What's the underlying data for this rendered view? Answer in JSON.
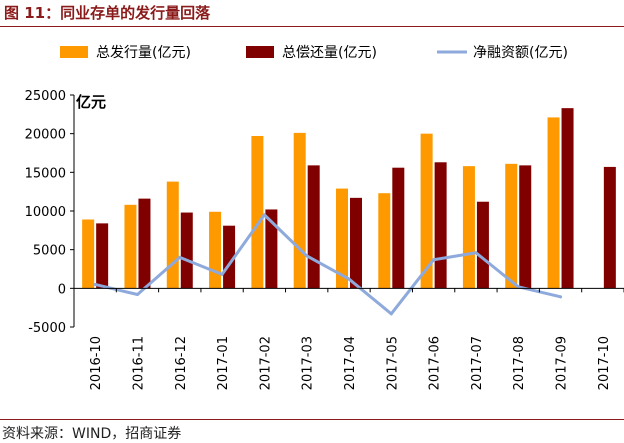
{
  "header": {
    "title": "图 11：同业存单的发行量回落"
  },
  "footer": {
    "source": "资料来源：WIND，招商证券"
  },
  "chart_data": {
    "type": "bar",
    "categories": [
      "2016-10",
      "2016-11",
      "2016-12",
      "2017-01",
      "2017-02",
      "2017-03",
      "2017-04",
      "2017-05",
      "2017-06",
      "2017-07",
      "2017-08",
      "2017-09",
      "2017-10"
    ],
    "ylabel": "亿元",
    "ylim": [
      -5000,
      25000
    ],
    "yticks": [
      25000,
      20000,
      15000,
      10000,
      5000,
      0,
      -5000
    ],
    "legend_position": "top",
    "grid": false,
    "series": [
      {
        "name": "总发行量(亿元)",
        "type": "bar",
        "color": "#ff9900",
        "values": [
          8900,
          10800,
          13800,
          9900,
          19700,
          20100,
          12900,
          12300,
          20000,
          15800,
          16100,
          22100,
          null
        ]
      },
      {
        "name": "总偿还量(亿元)",
        "type": "bar",
        "color": "#800000",
        "values": [
          8400,
          11600,
          9800,
          8100,
          10200,
          15900,
          11700,
          15600,
          16300,
          11200,
          15900,
          23300,
          15700
        ]
      },
      {
        "name": "净融资额(亿元)",
        "type": "line",
        "color": "#8ea9db",
        "values": [
          500,
          -800,
          4000,
          1800,
          9500,
          4200,
          1200,
          -3300,
          3700,
          4600,
          200,
          -1100,
          null
        ]
      }
    ]
  }
}
